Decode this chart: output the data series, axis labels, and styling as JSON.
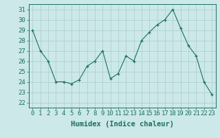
{
  "x": [
    0,
    1,
    2,
    3,
    4,
    5,
    6,
    7,
    8,
    9,
    10,
    11,
    12,
    13,
    14,
    15,
    16,
    17,
    18,
    19,
    20,
    21,
    22,
    23
  ],
  "y": [
    29,
    27,
    26,
    24,
    24,
    23.8,
    24.2,
    25.5,
    26,
    27,
    24.3,
    24.8,
    26.5,
    26,
    28,
    28.8,
    29.5,
    30,
    31,
    29.2,
    27.5,
    26.5,
    24,
    22.8
  ],
  "line_color": "#1a7060",
  "marker_color": "#1a7060",
  "bg_color": "#cce8e8",
  "grid_color": "#aacccc",
  "xlabel": "Humidex (Indice chaleur)",
  "ylim": [
    21.5,
    31.5
  ],
  "yticks": [
    22,
    23,
    24,
    25,
    26,
    27,
    28,
    29,
    30,
    31
  ],
  "xticks": [
    0,
    1,
    2,
    3,
    4,
    5,
    6,
    7,
    8,
    9,
    10,
    11,
    12,
    13,
    14,
    15,
    16,
    17,
    18,
    19,
    20,
    21,
    22,
    23
  ],
  "xlabel_fontsize": 7.5,
  "tick_fontsize": 6.5
}
